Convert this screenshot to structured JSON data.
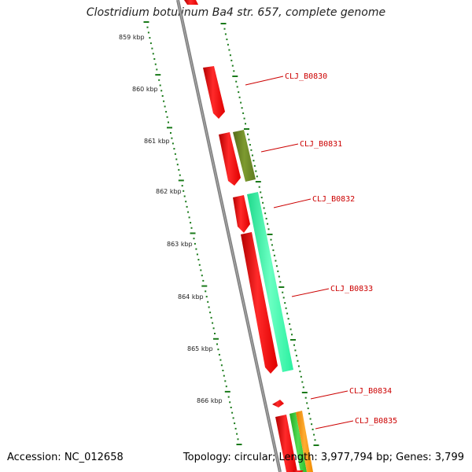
{
  "title": "Clostridium botulinum Ba4 str. 657, complete genome",
  "footer": {
    "accession": "Accession: NC_012658",
    "summary": "Topology: circular; Length: 3,977,794 bp; Genes: 3,799"
  },
  "scale": {
    "ticks": [
      "859 kbp",
      "860 kbp",
      "861 kbp",
      "862 kbp",
      "863 kbp",
      "864 kbp",
      "865 kbp",
      "866 kbp"
    ]
  },
  "genes": [
    {
      "label": "CLJ_B0830",
      "color": "#ff0000"
    },
    {
      "label": "CLJ_B0831",
      "color": "#6b8e23"
    },
    {
      "label": "CLJ_B0832",
      "color": "#ff0000"
    },
    {
      "label": "CLJ_B0833",
      "color": "#33ffaa"
    },
    {
      "label": "CLJ_B0834",
      "color": "#ff0000"
    },
    {
      "label": "CLJ_B0835",
      "color": "#ff9900"
    }
  ],
  "colors": {
    "backbone": "#7f7f7f",
    "ticks": "#1a7a1a",
    "cds_red": "#ff0000",
    "cds_olive": "#6b8e23",
    "cds_aqua": "#33ffaa",
    "cds_orange": "#ff9900",
    "cds_green": "#33cc33",
    "label": "#cc0000"
  }
}
